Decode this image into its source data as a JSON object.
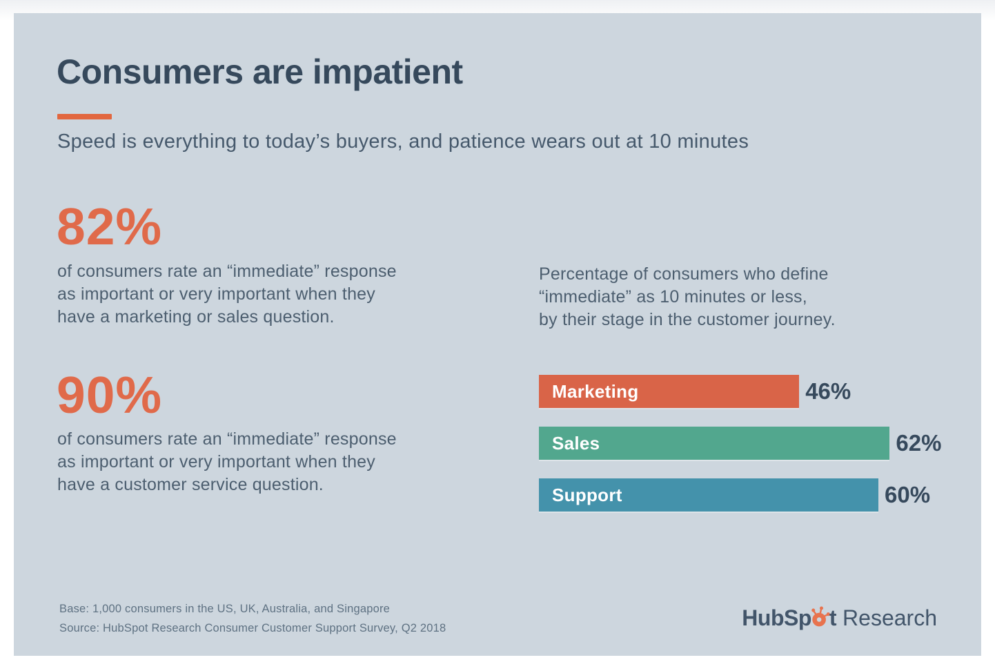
{
  "colors": {
    "page_bg": "#ffffff",
    "card_bg": "#cdd6de",
    "accent_underline": "#e2673f",
    "stat_orange": "#e06a4a",
    "title_text": "#36495c",
    "body_text": "#4c5e6f",
    "footnote_text": "#5e7182",
    "bar_label_text": "#ffffff",
    "bar_value_text": "#36495c",
    "logo_text": "#42556a",
    "logo_sprocket": "#e8734e"
  },
  "header": {
    "title": "Consumers are impatient",
    "subtitle": "Speed is everything to today’s buyers, and patience wears out at 10 minutes"
  },
  "stats": [
    {
      "value": "82%",
      "lines": [
        "of consumers rate an “immediate” response",
        "as important or very important when they",
        "have a marketing or sales question."
      ]
    },
    {
      "value": "90%",
      "lines": [
        "of consumers rate an “immediate” response",
        "as important or very important when they",
        "have a customer service question."
      ]
    }
  ],
  "chart_data": {
    "type": "bar",
    "orientation": "horizontal",
    "title": "Percentage of consumers who define “immediate” as 10 minutes or less, by their stage in the customer journey.",
    "title_lines": [
      "Percentage of consumers who define",
      "“immediate” as 10 minutes or less,",
      "by their stage in the customer journey."
    ],
    "categories": [
      "Marketing",
      "Sales",
      "Support"
    ],
    "values": [
      46,
      62,
      60
    ],
    "value_labels": [
      "46%",
      "62%",
      "60%"
    ],
    "bar_colors": [
      "#d96448",
      "#52a78e",
      "#4492ab"
    ],
    "xlim": [
      0,
      75
    ],
    "grid": false,
    "legend": "none",
    "value_label_position": "right-of-bar",
    "category_label_position": "inside-bar-left"
  },
  "footer": {
    "base_note": "Base: 1,000 consumers in the US, UK, Australia, and Singapore",
    "source_note": "Source: HubSpot Research Consumer Customer Support Survey, Q2 2018",
    "logo": {
      "part1": "HubSp",
      "part2": "t",
      "part3": "Research",
      "icon": "hubspot-sprocket-icon"
    }
  }
}
